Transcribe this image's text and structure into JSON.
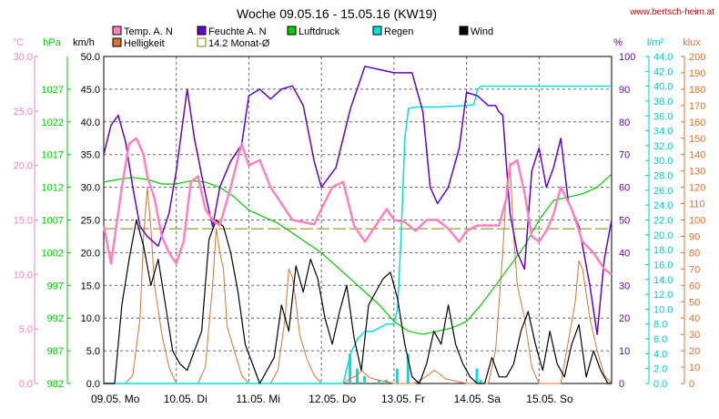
{
  "header": {
    "title": "Woche 09.05.16 - 15.05.16 (KW19)",
    "site": "www.bertsch-heim.at"
  },
  "legend": [
    {
      "key": "temp",
      "label": "Temp. A. N",
      "color": "#ff80c0"
    },
    {
      "key": "humidity",
      "label": "Feuchte A. N",
      "color": "#6600cc"
    },
    {
      "key": "pressure",
      "label": "Luftdruck",
      "color": "#00cc00"
    },
    {
      "key": "rain",
      "label": "Regen",
      "color": "#00e0e0"
    },
    {
      "key": "wind",
      "label": "Wind",
      "color": "#000000"
    },
    {
      "key": "light",
      "label": "Helligkeit",
      "color": "#e07030"
    },
    {
      "key": "avg",
      "label": "14.2 Monat-Ø",
      "color": "#808000"
    }
  ],
  "chart_data": {
    "type": "line",
    "x_labels": [
      "09.05.",
      "Mo",
      "10.05.",
      "Di",
      "11.05.",
      "Mi",
      "12.05.",
      "Do",
      "13.05.",
      "Fr",
      "14.05.",
      "Sa",
      "15.05.",
      "So"
    ],
    "days": [
      "09.05. Mo",
      "10.05. Di",
      "11.05. Mi",
      "12.05. Do",
      "13.05. Fr",
      "14.05. Sa",
      "15.05. So"
    ],
    "axes": {
      "temp": {
        "unit": "°C",
        "min": 0,
        "max": 30,
        "ticks": [
          "0.0",
          "5.0",
          "10.0",
          "15.0",
          "20.0",
          "25.0",
          "30.0"
        ],
        "color": "#ff80c0"
      },
      "pressure": {
        "unit": "hPa",
        "min": 982,
        "max": 1032,
        "ticks": [
          "982",
          "987",
          "992",
          "997",
          "1002",
          "1007",
          "1012",
          "1017",
          "1022",
          "1027"
        ],
        "color": "#00cc00"
      },
      "wind": {
        "unit": "km/h",
        "min": 0,
        "max": 50,
        "ticks": [
          "0.0",
          "5.0",
          "10.0",
          "15.0",
          "20.0",
          "25.0",
          "30.0",
          "35.0",
          "40.0",
          "45.0",
          "50.0"
        ],
        "color": "#000000"
      },
      "humidity": {
        "unit": "%",
        "min": 0,
        "max": 100,
        "ticks": [
          "0",
          "10",
          "20",
          "30",
          "40",
          "50",
          "60",
          "70",
          "80",
          "90",
          "100"
        ],
        "color": "#6600cc"
      },
      "rain": {
        "unit": "l/m²",
        "min": 0,
        "max": 44,
        "ticks": [
          "0.0",
          "2.0",
          "4.0",
          "6.0",
          "8.0",
          "10.0",
          "12.0",
          "14.0",
          "16.0",
          "18.0",
          "20.0",
          "22.0",
          "24.0",
          "26.0",
          "28.0",
          "30.0",
          "32.0",
          "34.0",
          "36.0",
          "38.0",
          "40.0",
          "42.0",
          "44.0"
        ],
        "color": "#00cccc"
      },
      "light": {
        "unit": "klux",
        "min": 0,
        "max": 200,
        "ticks": [
          "0",
          "10",
          "20",
          "30",
          "40",
          "50",
          "60",
          "70",
          "80",
          "90",
          "100",
          "110",
          "120",
          "130",
          "140",
          "150",
          "160",
          "170",
          "180",
          "190",
          "200"
        ],
        "color": "#e07030"
      }
    },
    "monthly_avg_temp": 14.2,
    "series": [
      {
        "name": "Temp. A. N",
        "axis": "temp",
        "x": [
          0,
          0.1,
          0.25,
          0.35,
          0.45,
          0.55,
          0.6,
          0.7,
          0.8,
          0.9,
          1.0,
          1.1,
          1.2,
          1.3,
          1.4,
          1.5,
          1.6,
          1.75,
          1.9,
          2.0,
          2.15,
          2.3,
          2.45,
          2.6,
          2.75,
          2.9,
          3.0,
          3.15,
          3.3,
          3.45,
          3.6,
          3.75,
          3.9,
          4.0,
          4.15,
          4.3,
          4.45,
          4.6,
          4.75,
          4.9,
          5.0,
          5.15,
          5.3,
          5.45,
          5.55,
          5.6,
          5.7,
          5.8,
          5.9,
          6.0,
          6.1,
          6.2,
          6.3,
          6.45,
          6.6,
          6.75,
          6.9,
          7.0
        ],
        "values": [
          14.5,
          11,
          18,
          22,
          22.5,
          21,
          19,
          17,
          13.5,
          12,
          11,
          13,
          18.5,
          19,
          16,
          15,
          14.5,
          18,
          22,
          20,
          20.5,
          18,
          16.5,
          15,
          14.8,
          14.6,
          16,
          18,
          18.5,
          14.5,
          13,
          14.5,
          16,
          15,
          14.8,
          14,
          15,
          15,
          14.2,
          13,
          14,
          14.5,
          14.5,
          14.5,
          17,
          20,
          20.5,
          17.5,
          13.5,
          13,
          14,
          15.5,
          18,
          16,
          13,
          12,
          10.5,
          10
        ]
      },
      {
        "name": "Feuchte A. N",
        "axis": "humidity",
        "x": [
          0,
          0.1,
          0.2,
          0.3,
          0.4,
          0.5,
          0.6,
          0.75,
          0.9,
          1.0,
          1.15,
          1.25,
          1.4,
          1.5,
          1.6,
          1.75,
          1.9,
          2.0,
          2.15,
          2.3,
          2.45,
          2.6,
          2.75,
          2.9,
          3.0,
          3.2,
          3.4,
          3.6,
          3.8,
          4.0,
          4.1,
          4.25,
          4.4,
          4.5,
          4.6,
          4.75,
          4.9,
          5.0,
          5.15,
          5.3,
          5.4,
          5.45,
          5.5,
          5.6,
          5.7,
          5.8,
          5.9,
          6.0,
          6.1,
          6.2,
          6.3,
          6.4,
          6.55,
          6.7,
          6.8,
          6.9,
          7.0
        ],
        "values": [
          70,
          79,
          82,
          74,
          60,
          48,
          45,
          42,
          52,
          65,
          90,
          75,
          58,
          48,
          60,
          68,
          73,
          88,
          90,
          87,
          90,
          91,
          85,
          68,
          60,
          66,
          84,
          97,
          96,
          95,
          95,
          95,
          83,
          60,
          55,
          60,
          72,
          89,
          88,
          85,
          85,
          83,
          82,
          52,
          40,
          35,
          65,
          72,
          60,
          66,
          75,
          56,
          48,
          30,
          15,
          38,
          50
        ]
      },
      {
        "name": "Luftdruck",
        "axis": "pressure",
        "x": [
          0,
          0.2,
          0.4,
          0.6,
          0.8,
          1.0,
          1.2,
          1.4,
          1.6,
          1.8,
          2.0,
          2.2,
          2.4,
          2.6,
          2.8,
          3.0,
          3.2,
          3.4,
          3.6,
          3.8,
          4.0,
          4.2,
          4.4,
          4.6,
          4.8,
          5.0,
          5.2,
          5.4,
          5.6,
          5.8,
          6.0,
          6.2,
          6.4,
          6.6,
          6.8,
          7.0
        ],
        "values": [
          1012.8,
          1013.2,
          1013.5,
          1013.2,
          1012.5,
          1012.5,
          1013,
          1012.8,
          1012,
          1010.5,
          1008.5,
          1007.5,
          1006.5,
          1005,
          1003.5,
          1002,
          1000,
          998,
          996,
          994,
          991.5,
          990,
          989.5,
          990,
          990.5,
          991.5,
          994,
          997,
          1000,
          1003,
          1007,
          1010,
          1010.5,
          1011,
          1012,
          1014
        ]
      },
      {
        "name": "Regen",
        "axis": "rain",
        "x": [
          0,
          3.3,
          3.4,
          3.5,
          3.6,
          3.7,
          3.8,
          3.9,
          4.0,
          4.05,
          4.1,
          4.15,
          4.2,
          4.3,
          4.6,
          4.8,
          5.0,
          5.1,
          5.15,
          5.2,
          5.3,
          6.0,
          6.5,
          7.0
        ],
        "values": [
          0,
          0,
          4,
          6,
          7,
          7,
          7.5,
          8,
          8,
          10,
          20,
          33,
          37,
          37.2,
          37.2,
          37.3,
          37.4,
          37.5,
          39.5,
          40,
          40,
          40,
          40,
          40
        ]
      },
      {
        "name": "Wind",
        "axis": "wind",
        "x": [
          0,
          0.15,
          0.25,
          0.35,
          0.45,
          0.55,
          0.65,
          0.75,
          0.85,
          0.95,
          1.05,
          1.15,
          1.25,
          1.35,
          1.45,
          1.55,
          1.65,
          1.75,
          1.85,
          1.95,
          2.05,
          2.15,
          2.25,
          2.35,
          2.45,
          2.55,
          2.65,
          2.75,
          2.85,
          2.95,
          3.05,
          3.15,
          3.25,
          3.35,
          3.45,
          3.55,
          3.65,
          3.75,
          3.85,
          3.95,
          4.05,
          4.15,
          4.25,
          4.35,
          4.45,
          4.55,
          4.65,
          4.75,
          4.85,
          4.95,
          5.05,
          5.15,
          5.25,
          5.35,
          5.45,
          5.55,
          5.65,
          5.75,
          5.85,
          5.95,
          6.05,
          6.15,
          6.25,
          6.35,
          6.45,
          6.55,
          6.65,
          6.75,
          6.85,
          6.95,
          7.0
        ],
        "values": [
          0,
          0,
          12,
          19,
          25,
          21,
          15,
          19,
          12,
          5,
          3,
          2,
          5,
          8,
          22,
          25,
          24,
          20,
          14,
          6,
          3,
          0,
          2,
          4,
          12,
          8,
          18,
          14,
          19,
          16,
          10,
          6,
          11,
          15,
          7,
          2,
          12,
          14,
          16,
          17,
          13,
          6,
          1,
          0,
          3,
          8,
          6,
          12,
          6,
          3,
          1,
          0,
          0,
          4,
          1,
          1,
          3,
          8,
          11,
          6,
          2,
          8,
          3,
          1,
          6,
          9,
          1,
          5,
          2,
          0,
          0
        ]
      },
      {
        "name": "Helligkeit",
        "axis": "light",
        "x": [
          0,
          0.3,
          0.4,
          0.5,
          0.55,
          0.6,
          0.65,
          0.7,
          0.8,
          0.9,
          1.0,
          1.3,
          1.4,
          1.5,
          1.55,
          1.6,
          1.65,
          1.7,
          1.8,
          1.9,
          2.0,
          2.3,
          2.4,
          2.5,
          2.55,
          2.6,
          2.65,
          2.7,
          2.8,
          2.9,
          3.0,
          3.3,
          3.4,
          3.5,
          3.55,
          3.6,
          3.65,
          3.7,
          3.8,
          3.9,
          4.0,
          4.3,
          4.4,
          4.5,
          4.55,
          4.6,
          4.65,
          4.7,
          4.8,
          4.9,
          5.0,
          5.3,
          5.4,
          5.5,
          5.55,
          5.6,
          5.65,
          5.7,
          5.8,
          5.9,
          6.0,
          6.3,
          6.4,
          6.5,
          6.55,
          6.6,
          6.65,
          6.7,
          6.8,
          6.9,
          7.0
        ],
        "values": [
          0,
          0,
          5,
          40,
          90,
          120,
          95,
          60,
          30,
          10,
          0,
          0,
          10,
          60,
          95,
          80,
          70,
          35,
          20,
          5,
          0,
          0,
          8,
          40,
          70,
          65,
          50,
          30,
          15,
          5,
          0,
          0,
          3,
          5,
          8,
          6,
          4,
          3,
          2,
          1,
          0,
          0,
          3,
          6,
          8,
          7,
          5,
          3,
          2,
          1,
          0,
          0,
          20,
          80,
          120,
          135,
          90,
          60,
          40,
          10,
          0,
          0,
          25,
          50,
          75,
          70,
          55,
          40,
          20,
          5,
          0
        ]
      }
    ]
  }
}
